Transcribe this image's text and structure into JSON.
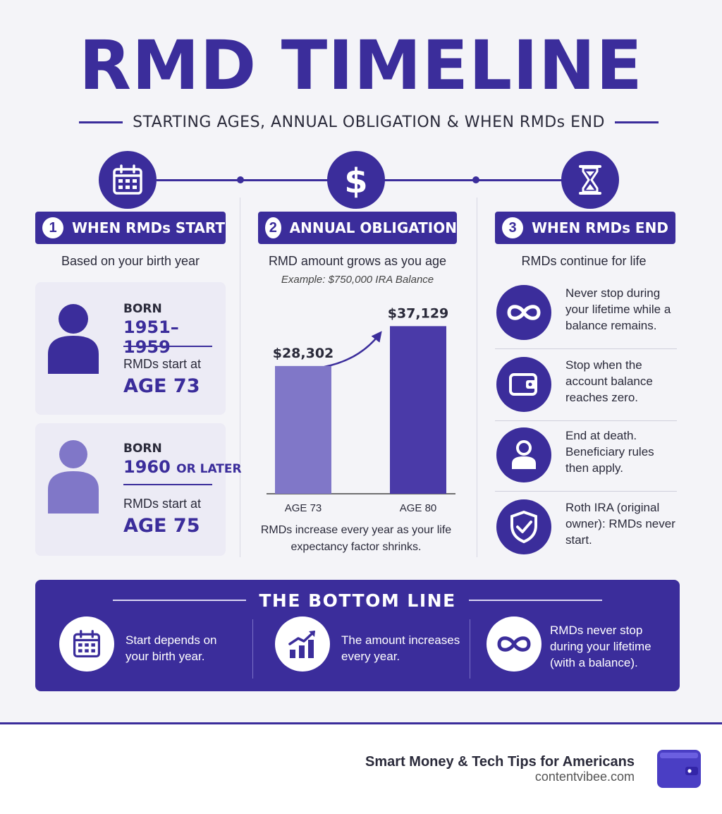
{
  "header": {
    "title": "RMD TIMELINE",
    "subtitle": "STARTING AGES, ANNUAL OBLIGATION & WHEN RMDs END"
  },
  "colors": {
    "accent": "#3b2d9b",
    "bar_light": "#8077c8",
    "bar_dark": "#4a3aa8"
  },
  "icons": {
    "step1": "calendar-icon",
    "step2": "dollar-icon",
    "step3": "hourglass-icon"
  },
  "step1": {
    "num": "1",
    "label": "WHEN RMDs START",
    "sub": "Based on your birth year",
    "cards": [
      {
        "born_label": "BORN",
        "years": "1951–1959",
        "years_suffix": "",
        "start_label": "RMDs start at",
        "age": "AGE 73"
      },
      {
        "born_label": "BORN",
        "years": "1960",
        "years_suffix": "OR LATER",
        "start_label": "RMDs start at",
        "age": "AGE 75"
      }
    ]
  },
  "step2": {
    "num": "2",
    "label": "ANNUAL OBLIGATION",
    "sub": "RMD amount grows as you age",
    "example": "Example: $750,000 IRA Balance",
    "note": "RMDs increase every year as your life expectancy factor shrinks."
  },
  "chart_data": {
    "type": "bar",
    "categories": [
      "AGE 73",
      "AGE 80"
    ],
    "values": [
      28302,
      37129
    ],
    "value_labels": [
      "$28,302",
      "$37,129"
    ],
    "ylim": [
      0,
      42000
    ]
  },
  "step3": {
    "num": "3",
    "label": "WHEN RMDs END",
    "sub": "RMDs continue for life",
    "items": [
      {
        "icon": "infinity-icon",
        "text": "Never stop during your lifetime while a balance remains."
      },
      {
        "icon": "wallet-icon",
        "text": "Stop when the account balance reaches zero."
      },
      {
        "icon": "person-icon",
        "text": "End at death. Beneficiary rules then apply."
      },
      {
        "icon": "shield-check-icon",
        "text": "Roth IRA (original owner): RMDs never start."
      }
    ]
  },
  "bottom_line": {
    "title": "THE BOTTOM LINE",
    "items": [
      {
        "icon": "calendar-icon",
        "text": "Start depends on your birth year."
      },
      {
        "icon": "growth-chart-icon",
        "text": "The amount increases every year."
      },
      {
        "icon": "infinity-icon",
        "text": "RMDs never stop during your lifetime (with a balance)."
      }
    ]
  },
  "footer": {
    "brand": "Smart Money & Tech Tips for Americans",
    "url": "contentvibee.com",
    "logo_icon": "wallet-logo-icon"
  }
}
